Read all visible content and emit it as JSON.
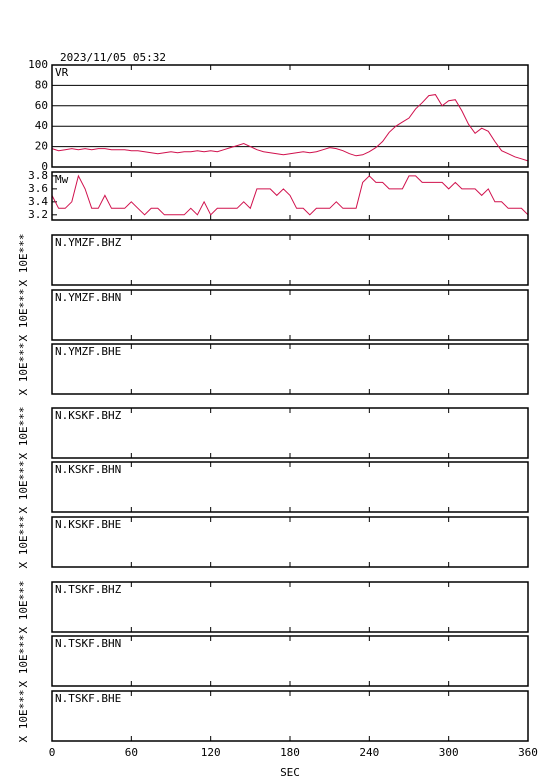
{
  "title": "2023/11/05 05:32",
  "x_axis": {
    "xlim": [
      0,
      360
    ],
    "xticks": [
      0,
      60,
      120,
      180,
      240,
      300,
      360
    ],
    "xlabel": "SEC"
  },
  "chart_data": [
    {
      "type": "line",
      "label": "VR",
      "color": "#d0104c",
      "grid": true,
      "ylim": [
        0,
        100
      ],
      "yticks": [
        0,
        20,
        40,
        60,
        80,
        100
      ],
      "x": [
        0,
        5,
        10,
        15,
        20,
        25,
        30,
        35,
        40,
        45,
        50,
        55,
        60,
        65,
        70,
        75,
        80,
        85,
        90,
        95,
        100,
        105,
        110,
        115,
        120,
        125,
        130,
        135,
        140,
        145,
        150,
        155,
        160,
        165,
        170,
        175,
        180,
        185,
        190,
        195,
        200,
        205,
        210,
        215,
        220,
        225,
        230,
        235,
        240,
        245,
        250,
        255,
        260,
        265,
        270,
        275,
        280,
        285,
        290,
        295,
        300,
        305,
        310,
        315,
        320,
        325,
        330,
        335,
        340,
        345,
        350,
        355,
        360
      ],
      "values": [
        18,
        16,
        17,
        18,
        17,
        18,
        17,
        18,
        18,
        17,
        17,
        17,
        16,
        16,
        15,
        14,
        13,
        14,
        15,
        14,
        15,
        15,
        16,
        15,
        16,
        15,
        17,
        19,
        21,
        23,
        20,
        17,
        15,
        14,
        13,
        12,
        13,
        14,
        15,
        14,
        15,
        17,
        19,
        18,
        16,
        13,
        11,
        12,
        15,
        19,
        25,
        34,
        40,
        44,
        48,
        57,
        63,
        70,
        71,
        60,
        65,
        66,
        55,
        42,
        33,
        38,
        35,
        25,
        16,
        13,
        10,
        8,
        6
      ]
    },
    {
      "type": "line",
      "label": "Mw",
      "color": "#d0104c",
      "grid": false,
      "ylim": [
        3.12,
        3.86
      ],
      "yticks": [
        3.2,
        3.4,
        3.6,
        3.8
      ],
      "x": [
        0,
        5,
        10,
        15,
        20,
        25,
        30,
        35,
        40,
        45,
        50,
        55,
        60,
        65,
        70,
        75,
        80,
        85,
        90,
        95,
        100,
        105,
        110,
        115,
        120,
        125,
        130,
        135,
        140,
        145,
        150,
        155,
        160,
        165,
        170,
        175,
        180,
        185,
        190,
        195,
        200,
        205,
        210,
        215,
        220,
        225,
        230,
        235,
        240,
        245,
        250,
        255,
        260,
        265,
        270,
        275,
        280,
        285,
        290,
        295,
        300,
        305,
        310,
        315,
        320,
        325,
        330,
        335,
        340,
        345,
        350,
        355,
        360
      ],
      "values": [
        3.5,
        3.3,
        3.3,
        3.4,
        3.8,
        3.6,
        3.3,
        3.3,
        3.5,
        3.3,
        3.3,
        3.3,
        3.4,
        3.3,
        3.2,
        3.3,
        3.3,
        3.2,
        3.2,
        3.2,
        3.2,
        3.3,
        3.2,
        3.4,
        3.2,
        3.3,
        3.3,
        3.3,
        3.3,
        3.4,
        3.3,
        3.6,
        3.6,
        3.6,
        3.5,
        3.6,
        3.5,
        3.3,
        3.3,
        3.2,
        3.3,
        3.3,
        3.3,
        3.4,
        3.3,
        3.3,
        3.3,
        3.7,
        3.8,
        3.7,
        3.7,
        3.6,
        3.6,
        3.6,
        3.8,
        3.8,
        3.7,
        3.7,
        3.7,
        3.7,
        3.6,
        3.7,
        3.6,
        3.6,
        3.6,
        3.5,
        3.6,
        3.4,
        3.4,
        3.3,
        3.3,
        3.3,
        3.2
      ]
    },
    {
      "type": "waveform",
      "label": "N.YMZF.BHZ",
      "ylabel": "X 10E***"
    },
    {
      "type": "waveform",
      "label": "N.YMZF.BHN",
      "ylabel": "X 10E***"
    },
    {
      "type": "waveform",
      "label": "N.YMZF.BHE",
      "ylabel": "X 10E***"
    },
    {
      "type": "waveform",
      "label": "N.KSKF.BHZ",
      "ylabel": "X 10E***"
    },
    {
      "type": "waveform",
      "label": "N.KSKF.BHN",
      "ylabel": "X 10E***"
    },
    {
      "type": "waveform",
      "label": "N.KSKF.BHE",
      "ylabel": "X 10E***"
    },
    {
      "type": "waveform",
      "label": "N.TSKF.BHZ",
      "ylabel": "X 10E***"
    },
    {
      "type": "waveform",
      "label": "N.TSKF.BHN",
      "ylabel": "X 10E***"
    },
    {
      "type": "waveform",
      "label": "N.TSKF.BHE",
      "ylabel": "X 10E***"
    }
  ]
}
